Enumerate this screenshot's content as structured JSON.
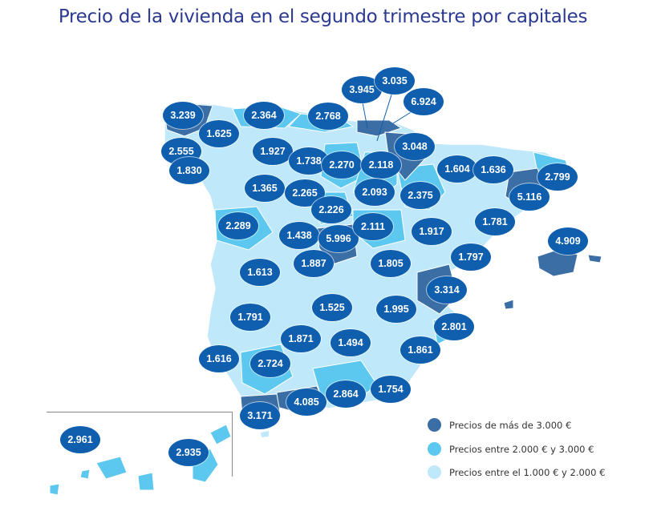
{
  "title": "Precio de la vivienda en el segundo trimestre por capitales",
  "colors": {
    "high": "#3a6ea5",
    "mid": "#5cc8f0",
    "low": "#bfe8fa",
    "bubble": "#0f5fae",
    "title": "#2b3990"
  },
  "legend": [
    {
      "label": "Precios de más de 3.000 €",
      "color": "#3a6ea5"
    },
    {
      "label": "Precios entre 2.000 € y 3.000 €",
      "color": "#5cc8f0"
    },
    {
      "label": "Precios entre el 1.000 € y 2.000 €",
      "color": "#bfe8fa"
    }
  ],
  "prices": {
    "coruna": "3.239",
    "lugo": "1.625",
    "oviedo": "2.364",
    "santander": "2.768",
    "bilbao": "3.945",
    "vitoria": "3.035",
    "donostia": "6.924",
    "pamplona": "3.048",
    "pontevedra": "2.555",
    "leon": "1.927",
    "palencia": "1.738",
    "burgos": "2.270",
    "logrono": "2.118",
    "huesca": "1.604",
    "lleida": "1.636",
    "girona": "2.799",
    "ourense": "1.830",
    "zamora": "1.365",
    "valladolid": "2.265",
    "soria": "2.093",
    "zaragoza": "2.375",
    "barcelona": "5.116",
    "salamanca": "2.289",
    "segovia": "2.226",
    "avila": "1.438",
    "madrid": "5.996",
    "guadalajara": "2.111",
    "teruel": "1.917",
    "tarragona": "1.781",
    "palma": "4.909",
    "caceres": "1.613",
    "toledo": "1.887",
    "cuenca": "1.805",
    "castellon": "1.797",
    "valencia": "3.314",
    "badajoz": "1.791",
    "ciudadreal": "1.525",
    "albacete": "1.995",
    "alicante": "2.801",
    "cordoba": "1.871",
    "jaen": "1.494",
    "murcia": "1.861",
    "huelva": "1.616",
    "sevilla": "2.724",
    "granada": "2.864",
    "almeria": "1.754",
    "malaga": "4.085",
    "cadiz": "3.171",
    "laspalmas": "2.961",
    "tenerife": "2.935"
  }
}
